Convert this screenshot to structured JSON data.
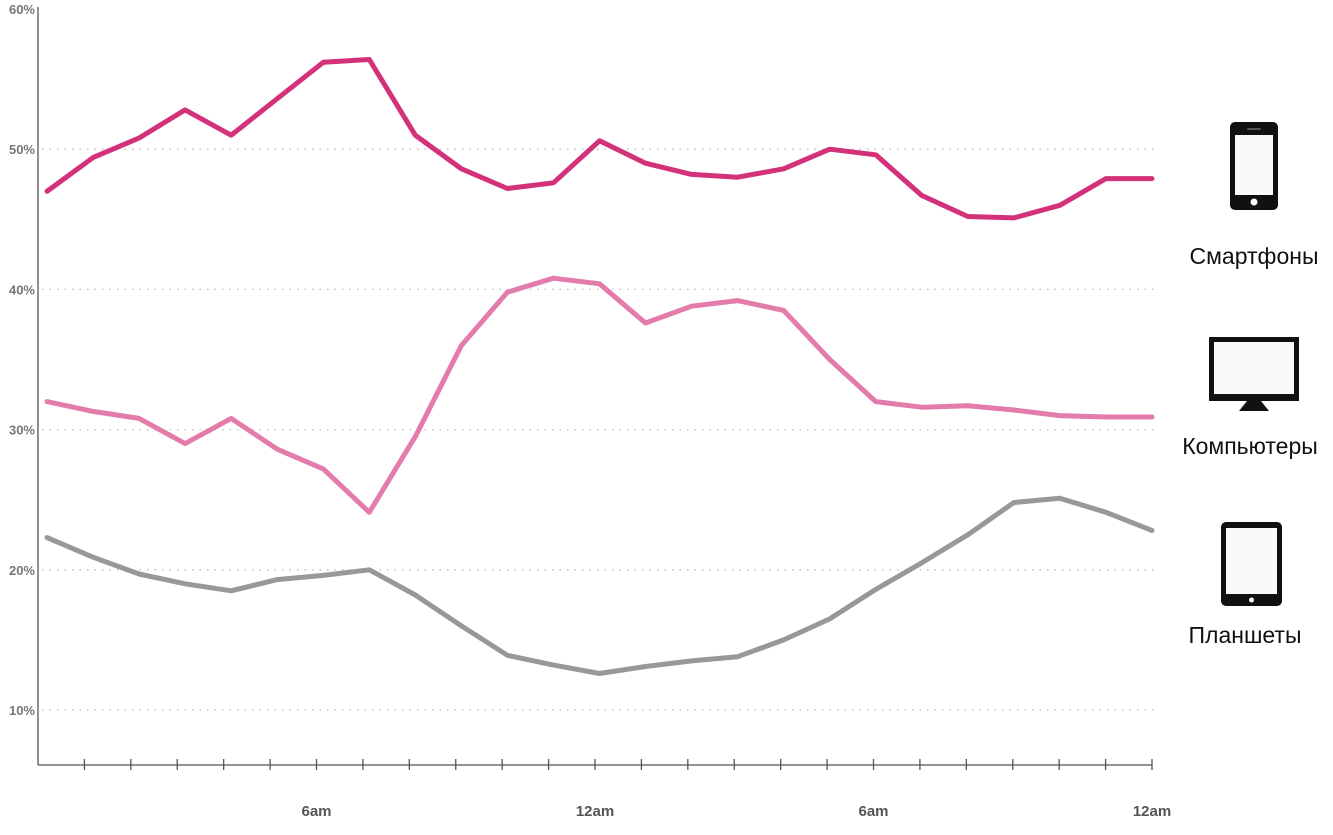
{
  "chart_data": {
    "type": "line",
    "title": "",
    "xlabel": "",
    "ylabel": "",
    "y_ticks": [
      "60%",
      "50%",
      "40%",
      "30%",
      "20%",
      "10%"
    ],
    "ylim": [
      10,
      60
    ],
    "x_ticks": [
      "6am",
      "12am",
      "6am",
      "12am"
    ],
    "x": [
      0,
      1,
      2,
      3,
      4,
      5,
      6,
      7,
      8,
      9,
      10,
      11,
      12,
      13,
      14,
      15,
      16,
      17,
      18,
      19,
      20,
      21,
      22,
      23,
      24
    ],
    "grid": "horizontal dotted",
    "legend_placement": "right",
    "series": [
      {
        "name": "Смартфоны",
        "color": "#d3317a",
        "icon": "smartphone-icon",
        "values": [
          47.0,
          49.4,
          50.8,
          52.8,
          51.0,
          53.6,
          56.2,
          56.4,
          51.0,
          48.6,
          47.2,
          47.6,
          50.6,
          49.0,
          48.2,
          48.0,
          48.6,
          50.0,
          49.6,
          46.7,
          45.2,
          45.1,
          46.0,
          47.9,
          47.9
        ]
      },
      {
        "name": "Компьютеры",
        "color": "#e37bab",
        "icon": "desktop-monitor-icon",
        "values": [
          32.0,
          31.3,
          30.8,
          29.0,
          30.8,
          28.6,
          27.2,
          24.1,
          29.5,
          36.0,
          39.8,
          40.8,
          40.4,
          37.6,
          38.8,
          39.2,
          38.5,
          35.0,
          32.0,
          31.6,
          31.7,
          31.4,
          31.0,
          30.9,
          30.9
        ]
      },
      {
        "name": "Планшеты",
        "color": "#989898",
        "icon": "tablet-icon",
        "values": [
          22.3,
          20.9,
          19.7,
          19.0,
          18.5,
          19.3,
          19.6,
          20.0,
          18.2,
          16.0,
          13.9,
          13.2,
          12.6,
          13.1,
          13.5,
          13.8,
          15.0,
          16.5,
          18.6,
          20.5,
          22.5,
          24.8,
          25.1,
          24.1,
          22.8
        ]
      }
    ]
  }
}
